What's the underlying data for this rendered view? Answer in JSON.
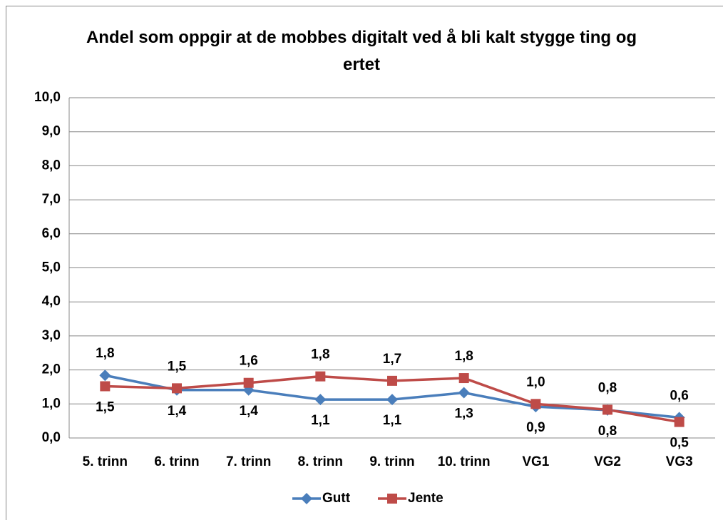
{
  "chart_data": {
    "type": "line",
    "title": "Andel som oppgir at de mobbes digitalt ved å bli kalt stygge ting og ertet",
    "categories": [
      "5. trinn",
      "6. trinn",
      "7. trinn",
      "8. trinn",
      "9. trinn",
      "10. trinn",
      "VG1",
      "VG2",
      "VG3"
    ],
    "series": [
      {
        "name": "Gutt",
        "color": "#4a7ebb",
        "marker": "diamond",
        "values": [
          1.84,
          1.41,
          1.41,
          1.13,
          1.13,
          1.33,
          0.92,
          0.82,
          0.6
        ],
        "value_labels": [
          "1,8",
          "1,4",
          "1,4",
          "1,1",
          "1,1",
          "1,3",
          "0,9",
          "0,8",
          "0,6"
        ]
      },
      {
        "name": "Jente",
        "color": "#be4b48",
        "marker": "square",
        "values": [
          1.52,
          1.46,
          1.62,
          1.81,
          1.68,
          1.76,
          1.0,
          0.83,
          0.47
        ],
        "value_labels": [
          "1,5",
          "1,5",
          "1,6",
          "1,8",
          "1,7",
          "1,8",
          "1,0",
          "0,8",
          "0,5"
        ]
      }
    ],
    "ylim": [
      0,
      10
    ],
    "yticks": [
      {
        "value": 0,
        "label": "0,0"
      },
      {
        "value": 1,
        "label": "1,0"
      },
      {
        "value": 2,
        "label": "2,0"
      },
      {
        "value": 3,
        "label": "3,0"
      },
      {
        "value": 4,
        "label": "4,0"
      },
      {
        "value": 5,
        "label": "5,0"
      },
      {
        "value": 6,
        "label": "6,0"
      },
      {
        "value": 7,
        "label": "7,0"
      },
      {
        "value": 8,
        "label": "8,0"
      },
      {
        "value": 9,
        "label": "9,0"
      },
      {
        "value": 10,
        "label": "10,0"
      }
    ],
    "grid": true,
    "legend": "bottom"
  }
}
